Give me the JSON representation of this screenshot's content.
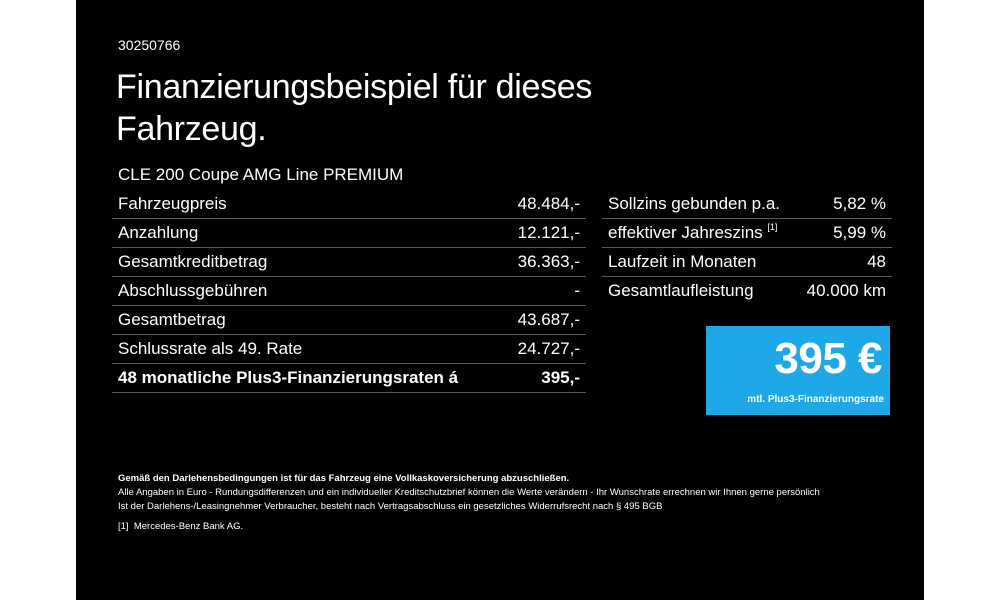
{
  "reference_number": "30250766",
  "headline": "Finanzierungsbeispiel für dieses Fahrzeug.",
  "model": "CLE 200 Coupe AMG Line PREMIUM",
  "left_table": [
    {
      "label": "Fahrzeugpreis",
      "value": "48.484,-"
    },
    {
      "label": "Anzahlung",
      "value": "12.121,-"
    },
    {
      "label": "Gesamtkreditbetrag",
      "value": "36.363,-"
    },
    {
      "label": "Abschlussgebühren",
      "value": "-"
    },
    {
      "label": "Gesamtbetrag",
      "value": "43.687,-"
    },
    {
      "label": "Schlussrate als 49. Rate",
      "value": "24.727,-"
    },
    {
      "label": "48 monatliche Plus3-Finanzierungsraten á",
      "value": "395,-"
    }
  ],
  "right_table": [
    {
      "label": "Sollzins gebunden p.a.",
      "value": "5,82 %"
    },
    {
      "label": "effektiver Jahreszins",
      "footnote": "[1]",
      "value": "5,99 %"
    },
    {
      "label": "Laufzeit in Monaten",
      "value": "48"
    },
    {
      "label": "Gesamtlaufleistung",
      "value": "40.000 km"
    }
  ],
  "rate_box": {
    "amount": "395 €",
    "caption": "mtl. Plus3-Finanzierungsrate",
    "color": "#1fa8e8"
  },
  "notes": {
    "insurance": "Gemäß den Darlehensbedingungen ist für das Fahrzeug eine Vollkaskoversicherung abzuschließen.",
    "disclaimer_1": "Alle Angaben in Euro - Rundungsdifferenzen und ein individueller Kreditschutzbrief können die Werte verändern - Ihr Wunschrate errechnen wir Ihnen gerne persönlich",
    "disclaimer_2": "Ist der Darlehens-/Leasingnehmer Verbraucher, besteht nach Vertragsabschluss ein gesetzliches Widerrufsrecht nach § 495 BGB",
    "footnote_marker": "[1]",
    "footnote_text": "Mercedes-Benz Bank AG."
  }
}
